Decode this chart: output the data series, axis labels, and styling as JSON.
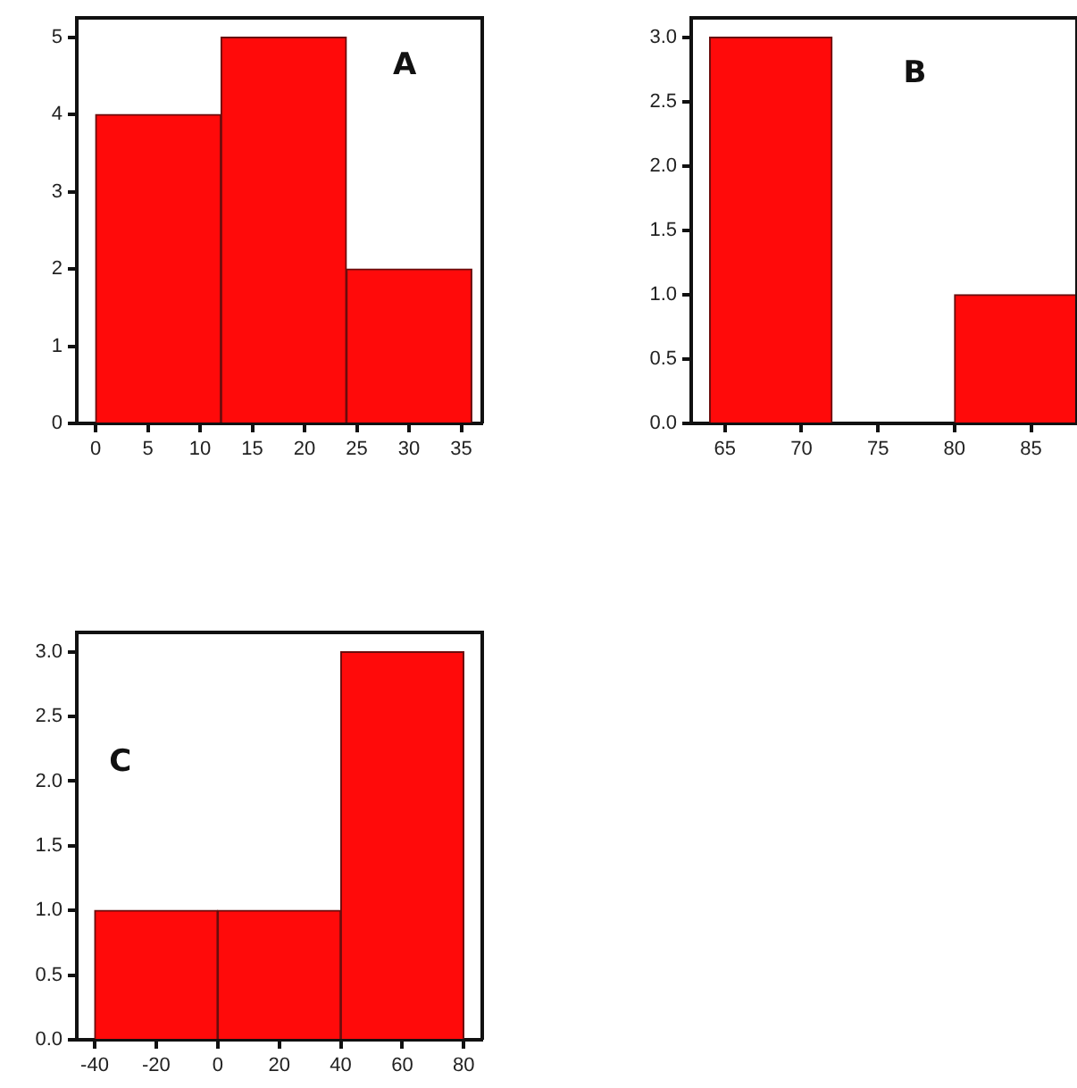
{
  "chart_data": [
    {
      "type": "histogram",
      "bins": [
        0,
        12,
        24,
        36
      ],
      "values": [
        4,
        5,
        2
      ],
      "color": "#ff0a0a",
      "xlim": [
        -1.8,
        37
      ],
      "ylim": [
        0,
        5.25
      ],
      "xticks": [
        0,
        5,
        10,
        15,
        20,
        25,
        30,
        35
      ],
      "yticks": [
        0,
        1,
        2,
        3,
        4,
        5
      ],
      "grid": false,
      "legend": false,
      "annotations": [
        "A"
      ]
    },
    {
      "type": "histogram",
      "bins": [
        64,
        72,
        80,
        88
      ],
      "values": [
        3,
        0,
        1
      ],
      "color": "#ff0a0a",
      "xlim": [
        62.8,
        88
      ],
      "ylim": [
        0,
        3.15
      ],
      "xticks": [
        65,
        70,
        75,
        80,
        85
      ],
      "yticks": [
        {
          "value": 0,
          "label": "0.0"
        },
        {
          "value": 0.5,
          "label": "0.5"
        },
        {
          "value": 1,
          "label": "1.0"
        },
        {
          "value": 1.5,
          "label": "1.5"
        },
        {
          "value": 2,
          "label": "2.0"
        },
        {
          "value": 2.5,
          "label": "2.5"
        },
        {
          "value": 3,
          "label": "3.0"
        }
      ],
      "grid": false,
      "legend": false,
      "annotations": [
        "B"
      ]
    },
    {
      "type": "histogram",
      "bins": [
        -40,
        0,
        40,
        80
      ],
      "values": [
        1,
        1,
        3
      ],
      "color": "#ff0a0a",
      "xlim": [
        -45.8,
        86
      ],
      "ylim": [
        0,
        3.15
      ],
      "xticks": [
        -40,
        -20,
        0,
        20,
        40,
        60,
        80
      ],
      "yticks": [
        {
          "value": 0,
          "label": "0.0"
        },
        {
          "value": 0.5,
          "label": "0.5"
        },
        {
          "value": 1,
          "label": "1.0"
        },
        {
          "value": 1.5,
          "label": "1.5"
        },
        {
          "value": 2,
          "label": "2.0"
        },
        {
          "value": 2.5,
          "label": "2.5"
        },
        {
          "value": 3,
          "label": "3.0"
        }
      ],
      "grid": false,
      "legend": false,
      "annotations": [
        "C"
      ]
    }
  ]
}
